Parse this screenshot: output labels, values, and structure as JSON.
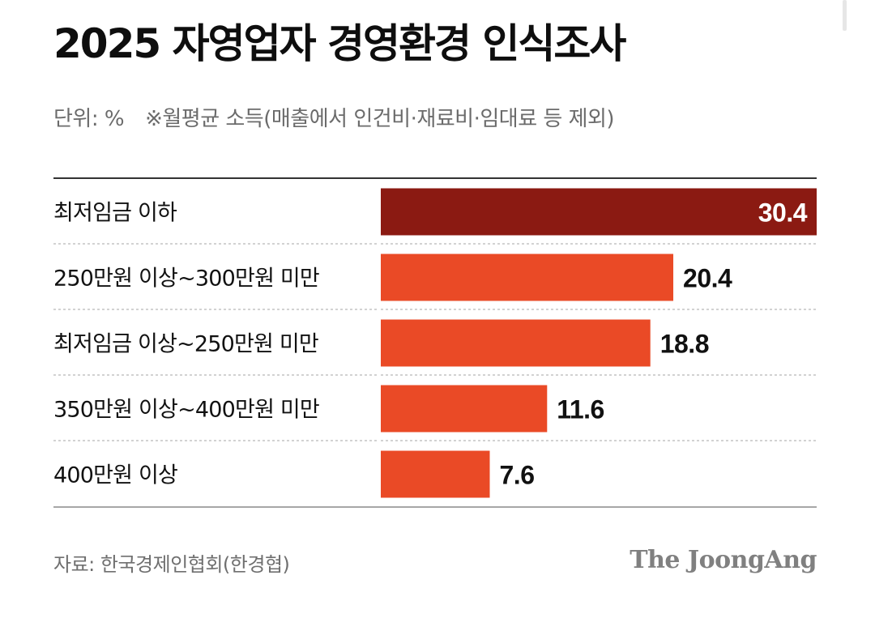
{
  "title": "2025 자영업자 경영환경 인식조사",
  "unit_label": "단위: %",
  "note": "※월평균 소득(매출에서 인건비·재료비·임대료 등 제외)",
  "source": "자료: 한국경제인협회(한경협)",
  "brand": "The JoongAng",
  "colors": {
    "highlight": "#8b1a12",
    "bar": "#ea4a26",
    "label_on_bar": "#ffffff",
    "label_outside": "#111111",
    "rule": "#333333",
    "separator": "#c4c4c4"
  },
  "chart_data": {
    "type": "bar",
    "orientation": "horizontal",
    "categories": [
      "최저임금 이하",
      "250만원 이상~300만원 미만",
      "최저임금 이상~250만원 미만",
      "350만원 이상~400만원 미만",
      "400만원 이상"
    ],
    "values": [
      30.4,
      20.4,
      18.8,
      11.6,
      7.6
    ],
    "value_labels": [
      "30.4",
      "20.4",
      "18.8",
      "11.6",
      "7.6"
    ],
    "highlight_index": 0,
    "xlim": [
      0,
      30.4
    ],
    "grid": false
  }
}
